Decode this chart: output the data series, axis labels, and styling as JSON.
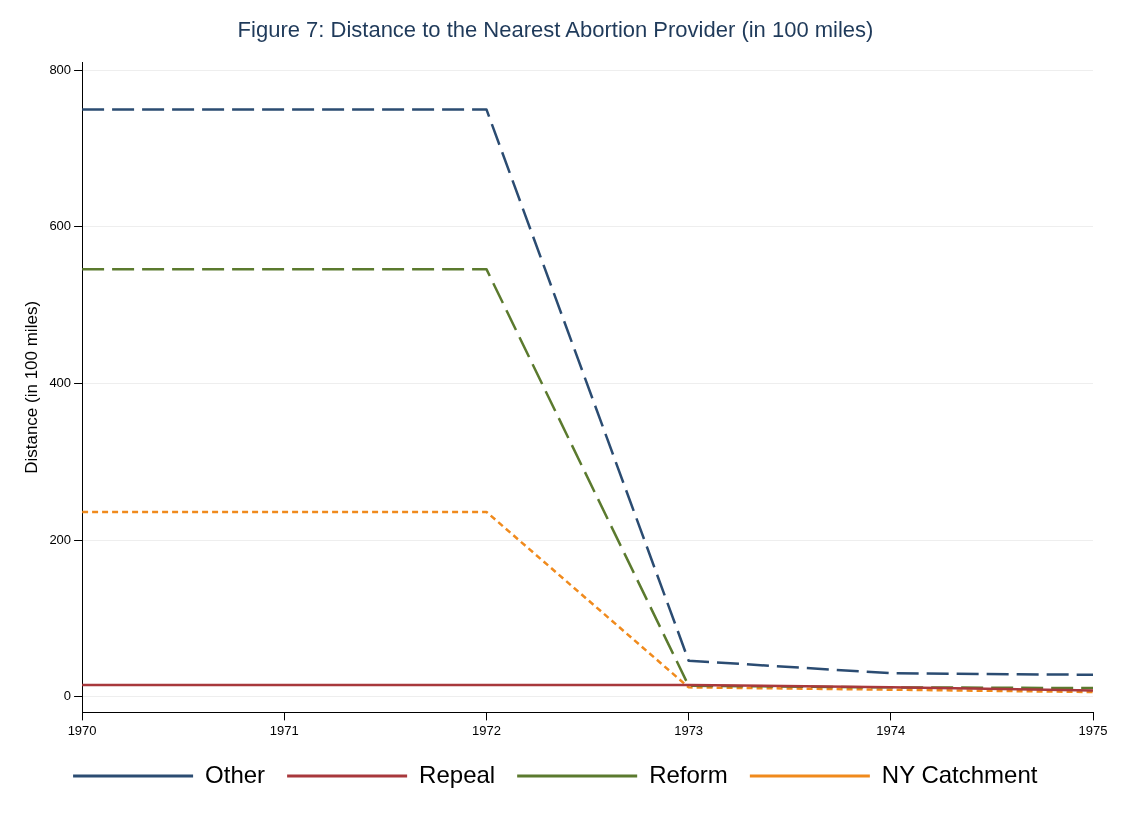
{
  "chart_data": {
    "type": "line",
    "title": "Figure 7: Distance to the Nearest Abortion Provider (in 100 miles)",
    "ylabel": "Distance (in 100 miles)",
    "xlim": [
      1970,
      1975
    ],
    "xticks": [
      1970,
      1971,
      1972,
      1973,
      1974,
      1975
    ],
    "ylim": [
      -20,
      810
    ],
    "yticks": [
      0,
      200,
      400,
      600,
      800
    ],
    "grid": "y",
    "legend": "bottom",
    "marker": "none",
    "series": [
      {
        "name": "Other",
        "color": "#2b4c72",
        "line_style": "dashed",
        "x": [
          1970,
          1972,
          1973,
          1974,
          1975
        ],
        "values": [
          750,
          750,
          46,
          30,
          28
        ]
      },
      {
        "name": "Repeal",
        "color": "#a8383c",
        "line_style": "solid",
        "x": [
          1970,
          1972,
          1973,
          1974,
          1975
        ],
        "values": [
          15,
          15,
          15,
          12,
          8
        ]
      },
      {
        "name": "Reform",
        "color": "#5b7a2e",
        "line_style": "dashed",
        "x": [
          1970,
          1972,
          1973,
          1974,
          1975
        ],
        "values": [
          546,
          546,
          14,
          12,
          11
        ]
      },
      {
        "name": "NY Catchment",
        "color": "#f08a1c",
        "line_style": "dotted",
        "x": [
          1970,
          1972,
          1973,
          1974,
          1975
        ],
        "values": [
          236,
          236,
          12,
          9,
          6
        ]
      }
    ]
  }
}
